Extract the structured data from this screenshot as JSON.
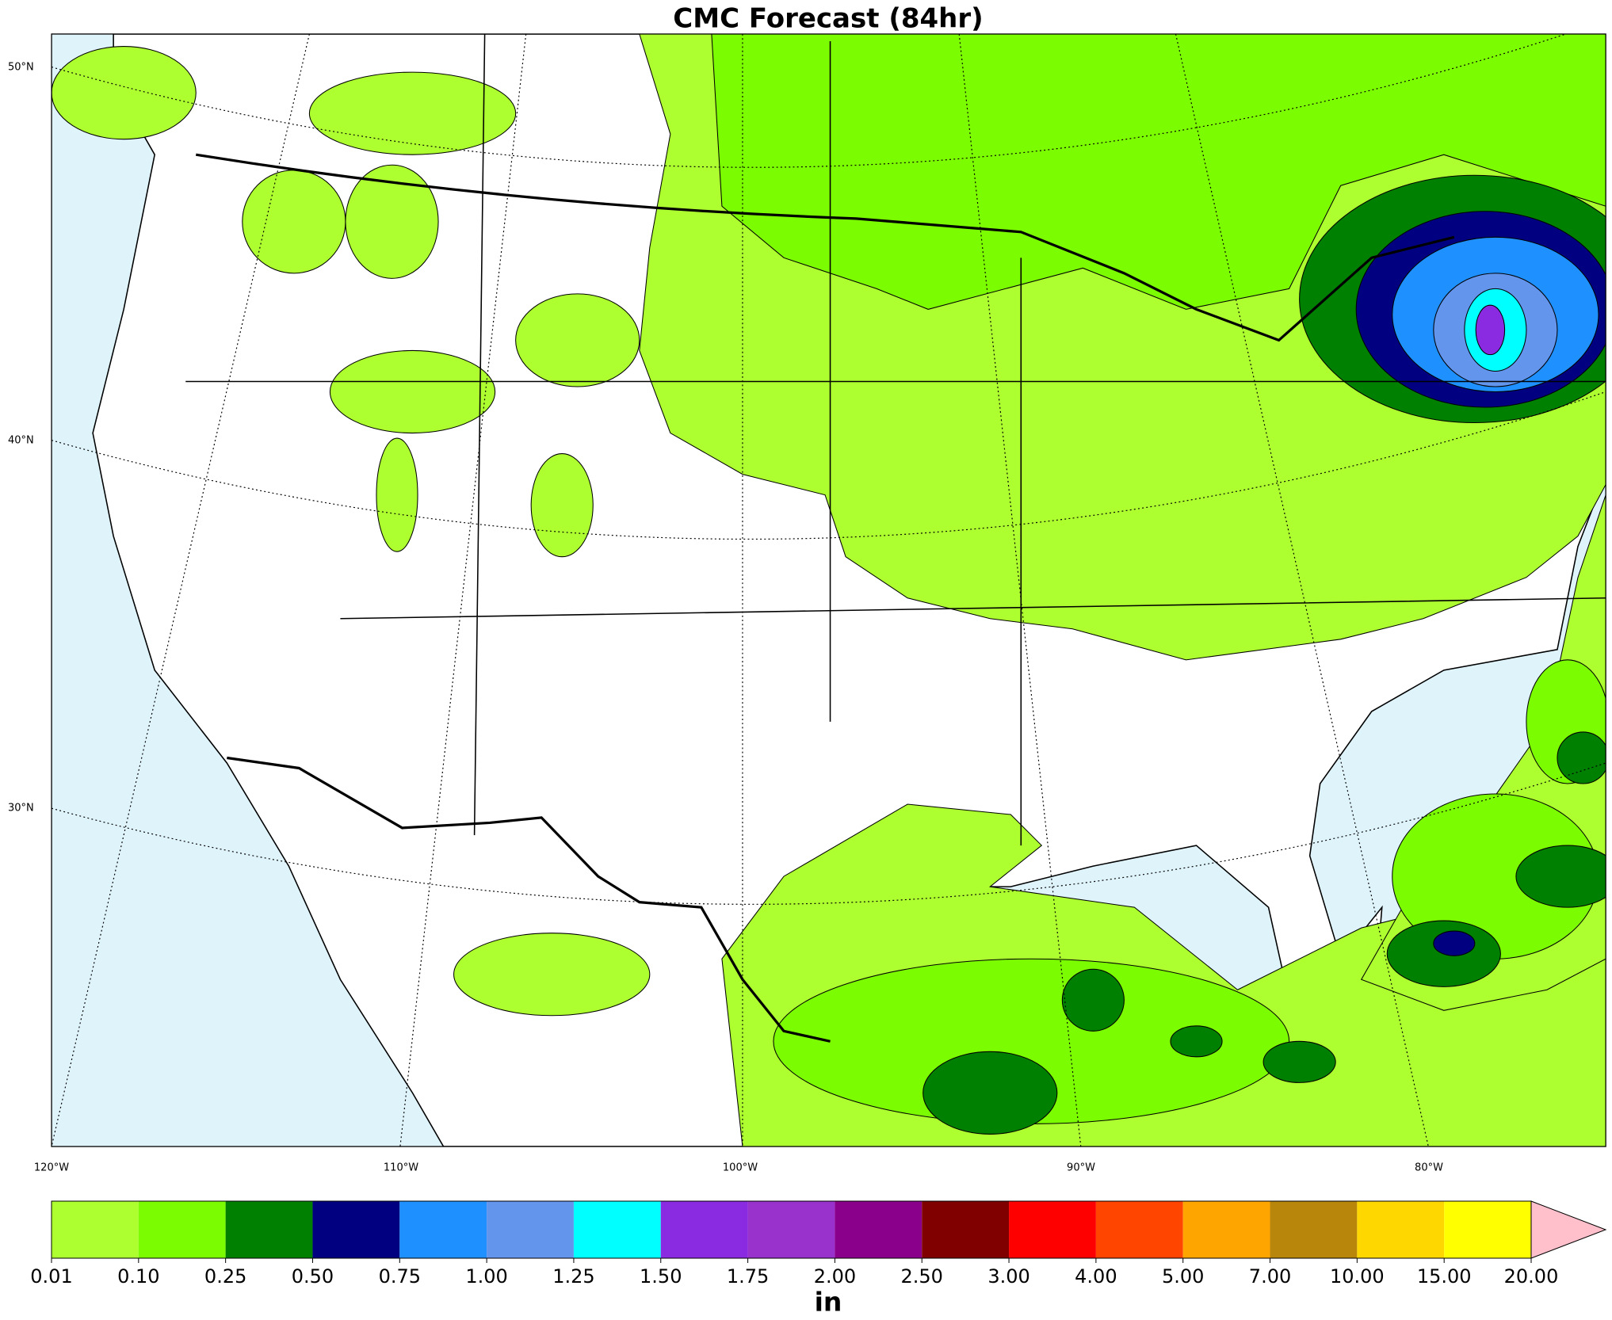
{
  "title": "CMC Forecast (84hr)",
  "map": {
    "lat_labels": [
      "50°N",
      "40°N",
      "30°N"
    ],
    "lon_labels": [
      "120°W",
      "110°W",
      "100°W",
      "90°W",
      "80°W"
    ]
  },
  "colorbar": {
    "levels": [
      {
        "value": 0.01,
        "label": "0.01"
      },
      {
        "value": 0.1,
        "label": "0.10"
      },
      {
        "value": 0.25,
        "label": "0.25"
      },
      {
        "value": 0.5,
        "label": "0.50"
      },
      {
        "value": 0.75,
        "label": "0.75"
      },
      {
        "value": 1,
        "label": "1.00"
      },
      {
        "value": 1.25,
        "label": "1.25"
      },
      {
        "value": 1.5,
        "label": "1.50"
      },
      {
        "value": 1.75,
        "label": "1.75"
      },
      {
        "value": 2,
        "label": "2.00"
      },
      {
        "value": 2.5,
        "label": "2.50"
      },
      {
        "value": 3,
        "label": "3.00"
      },
      {
        "value": 4,
        "label": "4.00"
      },
      {
        "value": 5,
        "label": "5.00"
      },
      {
        "value": 7,
        "label": "7.00"
      },
      {
        "value": 10,
        "label": "10.00"
      },
      {
        "value": 15,
        "label": "15.00"
      },
      {
        "value": 20,
        "label": "20.00"
      }
    ],
    "colors": [
      "#adff2f",
      "#7cfc00",
      "#008000",
      "#000080",
      "#1e90ff",
      "#6495ed",
      "#00ffff",
      "#8a2be2",
      "#9932cc",
      "#8b008b",
      "#800000",
      "#ff0000",
      "#ff4500",
      "#ffa500",
      "#b8860b",
      "#ffd700",
      "#ffff00"
    ],
    "extend_color": "#ffc0cb",
    "unit": "in"
  }
}
